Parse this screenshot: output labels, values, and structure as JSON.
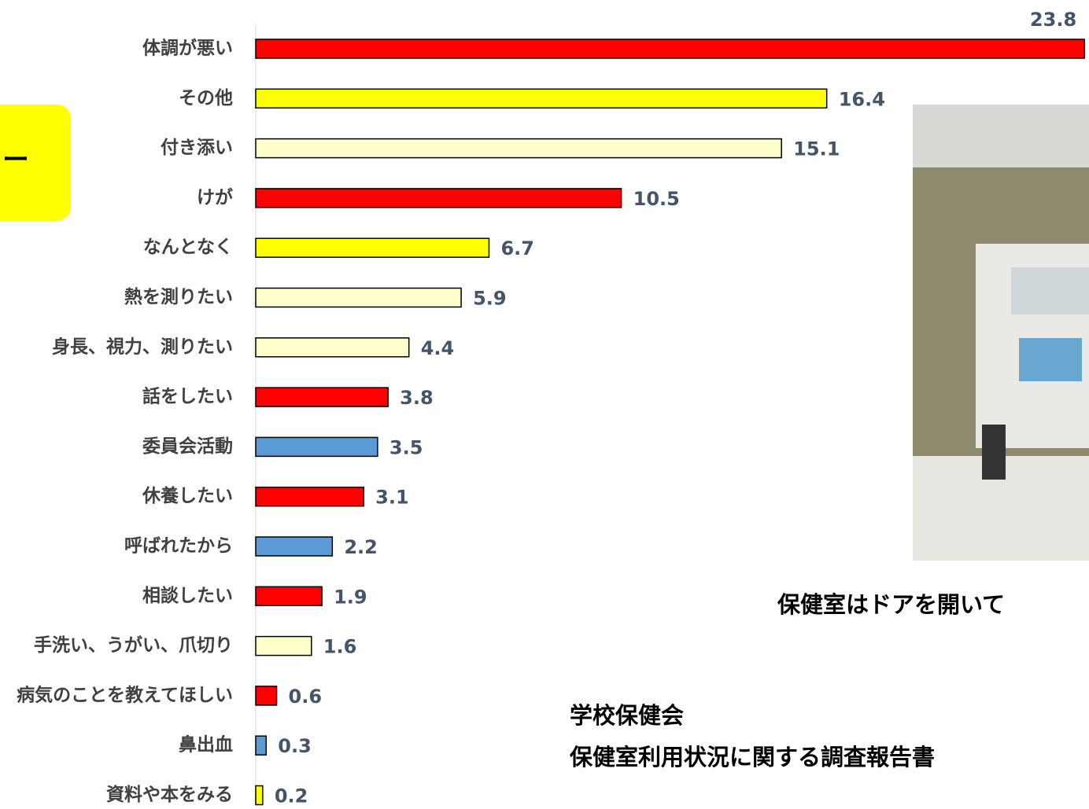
{
  "chart_data": {
    "type": "bar",
    "orientation": "horizontal",
    "categories": [
      "体調が悪い",
      "その他",
      "付き添い",
      "けが",
      "なんとなく",
      "熱を測りたい",
      "身長、視力、測りたい",
      "話をしたい",
      "委員会活動",
      "休養したい",
      "呼ばれたから",
      "相談したい",
      "手洗い、うがい、爪切り",
      "病気のことを教えてほしい",
      "鼻出血",
      "資料や本をみる"
    ],
    "values": [
      23.8,
      16.4,
      15.1,
      10.5,
      6.7,
      5.9,
      4.4,
      3.8,
      3.5,
      3.1,
      2.2,
      1.9,
      1.6,
      0.6,
      0.3,
      0.2
    ],
    "colors": [
      "#ff0000",
      "#ffff00",
      "#ffffcc",
      "#ff0000",
      "#ffff00",
      "#ffffcc",
      "#ffffcc",
      "#ff0000",
      "#5b9bd5",
      "#ff0000",
      "#5b9bd5",
      "#ff0000",
      "#ffffcc",
      "#ff0000",
      "#5b9bd5",
      "#ffff00"
    ],
    "xlim": [
      0,
      24
    ]
  },
  "side_box": {
    "text": "ー"
  },
  "photo_caption": "保健室はドアを開いて",
  "source": {
    "line1": "学校保健会",
    "line2": "保健室利用状況に関する調査報告書"
  }
}
